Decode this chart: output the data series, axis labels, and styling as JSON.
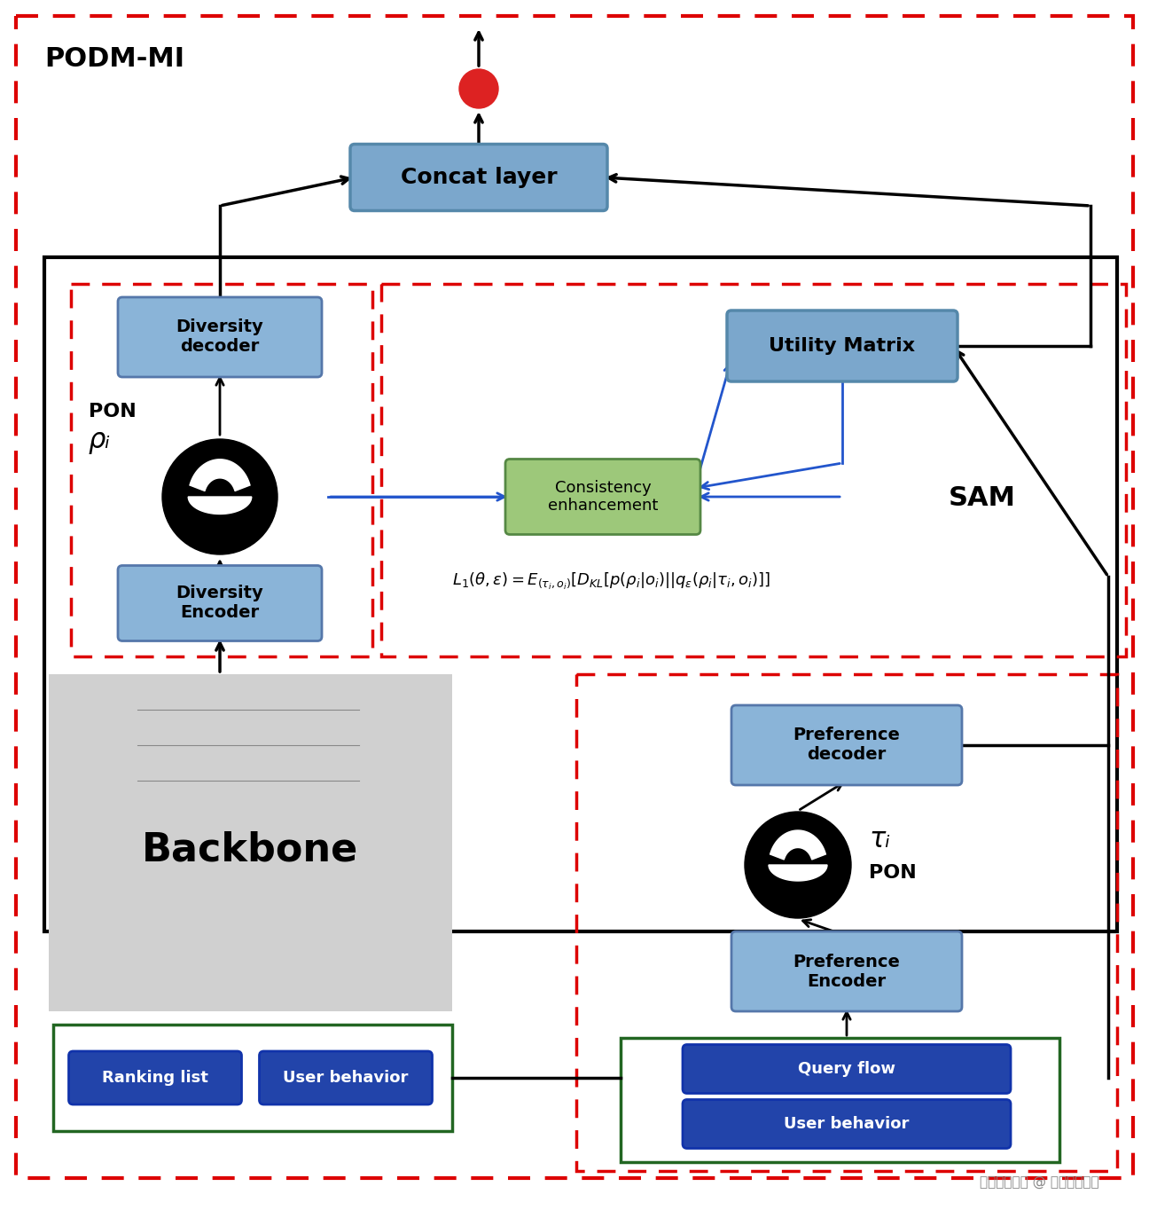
{
  "title": "PODM-MI",
  "bg_color": "#ffffff",
  "outer_border_color": "#e00000",
  "inner_box_color": "#000000",
  "box_blue_light": "#7ba7d4",
  "box_blue_dark": "#2255aa",
  "box_green": "#8fbc6a",
  "concat_layer_text": "Concat layer",
  "utility_matrix_text": "Utility Matrix",
  "consistency_text": "Consistency\nenhancement",
  "diversity_decoder_text": "Diversity\ndecoder",
  "diversity_encoder_text": "Diversity\nEncoder",
  "preference_decoder_text": "Preference\ndecoder",
  "preference_encoder_text": "Preference\nEncoder",
  "query_flow_text": "Query flow",
  "user_behavior_text": "User behavior",
  "ranking_list_text": "Ranking list",
  "user_behavior2_text": "User behavior",
  "backbone_text": "Backbone",
  "sam_text": "SAM",
  "pon_text1": "PON",
  "pon_text2": "PON",
  "rho_text": "ρᵢ",
  "tau_text": "τᵢ",
  "formula": "L₁ (θ,ε) = E₍τᵢ,oᵢ₎ [Dₖₗ [p (ρᵢ|oᵢ) ||qε (ρᵢ|τᵢ, oᵢ)]]",
  "watermark": "掘金技术社区 @ 京东云开发者"
}
